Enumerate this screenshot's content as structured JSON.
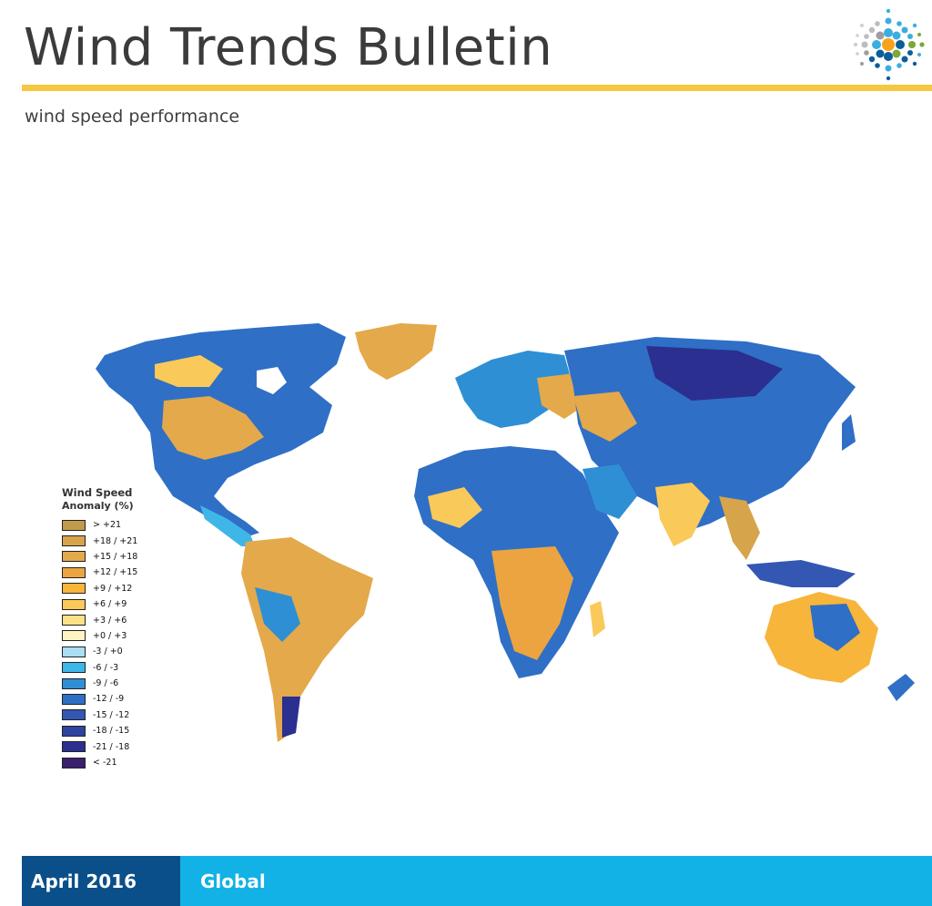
{
  "header": {
    "title": "Wind Trends Bulletin",
    "subtitle": "wind speed performance",
    "rule_color": "#f5c842",
    "logo_icon": "dots-sunburst-logo"
  },
  "map": {
    "title": "Wind Speed",
    "subtitle": "Anomaly (%)",
    "legend": [
      {
        "label": "> +21",
        "color": "#c29a4c"
      },
      {
        "label": "+18 / +21",
        "color": "#d6a44a"
      },
      {
        "label": "+15 / +18",
        "color": "#e3a94b"
      },
      {
        "label": "+12 / +15",
        "color": "#eca440"
      },
      {
        "label": "+9 / +12",
        "color": "#f7b53b"
      },
      {
        "label": "+6 / +9",
        "color": "#f9c95a"
      },
      {
        "label": "+3 / +6",
        "color": "#fce186"
      },
      {
        "label": "+0 / +3",
        "color": "#fdf4c1"
      },
      {
        "label": "-3 / +0",
        "color": "#a9def3"
      },
      {
        "label": "-6 / -3",
        "color": "#3fb6e8"
      },
      {
        "label": "-9 / -6",
        "color": "#2f8fd4"
      },
      {
        "label": "-12 / -9",
        "color": "#2f6fc6"
      },
      {
        "label": "-15 / -12",
        "color": "#3357b3"
      },
      {
        "label": "-18 / -15",
        "color": "#2f43a0"
      },
      {
        "label": "-21 / -18",
        "color": "#2b2f8f"
      },
      {
        "label": "< -21",
        "color": "#3a1f6e"
      }
    ]
  },
  "footer": {
    "date": "April 2016",
    "region": "Global",
    "date_bg": "#0b4f8a",
    "region_bg": "#12b1e6"
  }
}
